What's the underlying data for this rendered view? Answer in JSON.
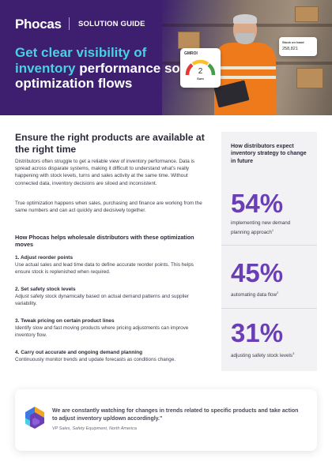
{
  "header": {
    "brand": "Phocas",
    "doc_type": "SOLUTION GUIDE",
    "headline_highlight": "Get clear visibility of inventory",
    "headline_rest": " performance so optimization flows"
  },
  "hero_widgets": {
    "gmroi_label": "GMROI",
    "gmroi_value": "2",
    "gmroi_unit": "Sum",
    "stock_label": "Stock on hand",
    "stock_value": "258,821",
    "gauge_colors": [
      "#e53935",
      "#fbc02d",
      "#43a047"
    ]
  },
  "main": {
    "heading": "Ensure the right products are available at the right time",
    "paragraph_1": "Distributors often struggle to get a reliable view of inventory performance. Data is spread across disparate systems, making it difficult to understand what's really happening with stock levels, turns and sales activity at the same time. Without connected data, inventory decisions are siloed and inconsistent.",
    "paragraph_2": "True optimization happens when sales, purchasing and finance are working from the same numbers and can act quickly and decisively together.",
    "subheading": "How Phocas helps wholesale distributors with these optimization moves",
    "steps": [
      {
        "title": "1. Adjust reorder points",
        "text": "Use actual sales and lead time data to define accurate reorder points. This helps ensure stock is replenished when required."
      },
      {
        "title": "2. Set safety stock levels",
        "text": "Adjust safety stock dynamically based on actual demand patterns and supplier variability."
      },
      {
        "title": "3. Tweak pricing on certain product lines",
        "text": "Identify slow and fast moving products where pricing adjustments can improve inventory flow."
      },
      {
        "title": "4. Carry out accurate and ongoing demand planning",
        "text": "Continuously monitor trends and update forecasts as conditions change."
      }
    ]
  },
  "sidebar": {
    "heading": "How distributors expect inventory strategy to change in future",
    "stats": [
      {
        "value": "54%",
        "label": "implementing new demand planning approach",
        "note": "1"
      },
      {
        "value": "45%",
        "label": "automating data flow",
        "note": "2"
      },
      {
        "value": "31%",
        "label": "adjusting safety stock levels",
        "note": "3"
      }
    ]
  },
  "quote": {
    "text": "We are constantly watching for changes in trends related to specific products and take action to adjust inventory up/down accordingly.\"",
    "attribution": "VP Sales, Safety Equipment, North America"
  },
  "colors": {
    "brand_purple": "#3e1f6f",
    "accent_cyan": "#46d2e3",
    "stat_purple": "#6a3fb5",
    "sidebar_bg": "#f2f2f4"
  }
}
